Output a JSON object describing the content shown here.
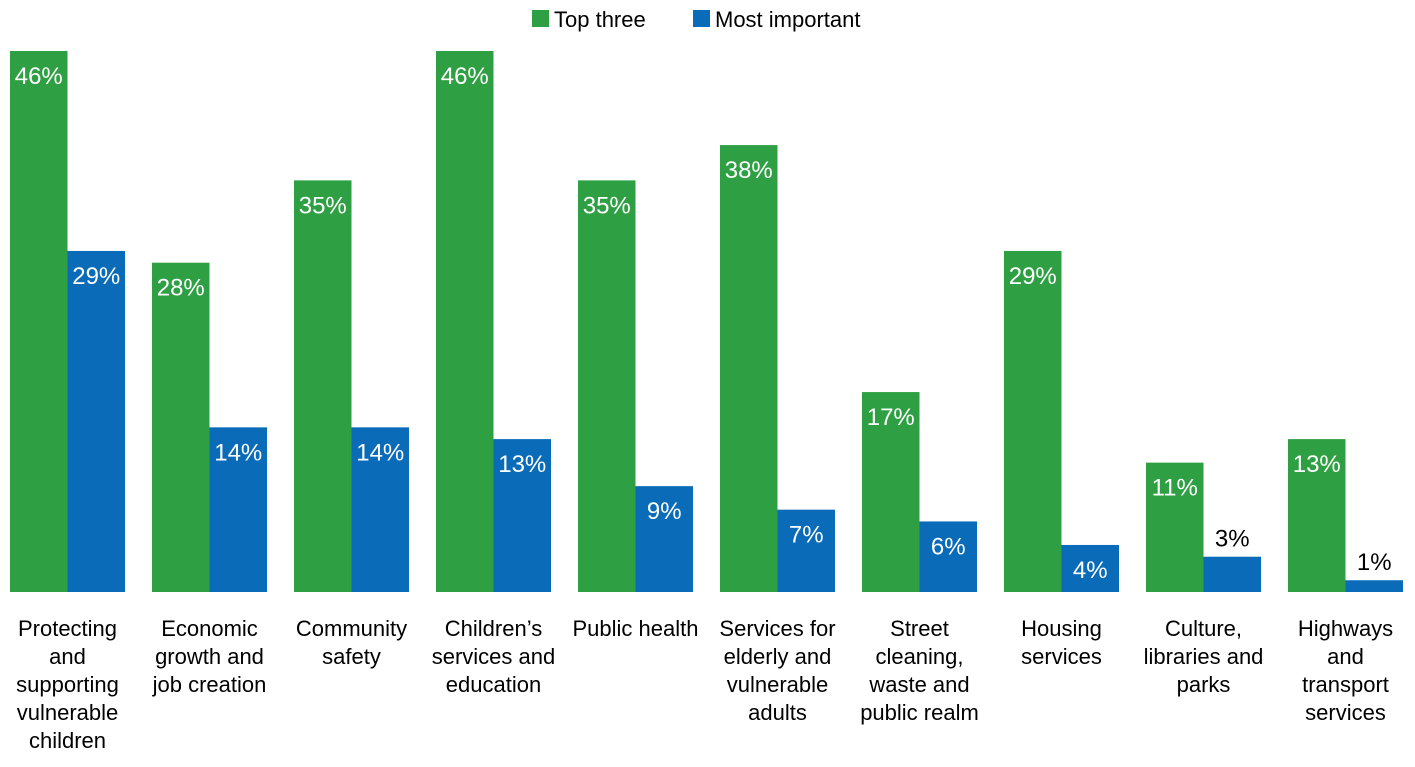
{
  "chart_data": {
    "type": "bar",
    "categories": [
      [
        "Protecting",
        "and",
        "supporting",
        "vulnerable",
        "children"
      ],
      [
        "Economic",
        "growth and",
        "job creation"
      ],
      [
        "Community",
        "safety"
      ],
      [
        "Children’s",
        "services and",
        "education"
      ],
      [
        "Public health"
      ],
      [
        "Services for",
        "elderly and",
        "vulnerable",
        "adults"
      ],
      [
        "Street",
        "cleaning,",
        "waste and",
        "public realm"
      ],
      [
        "Housing",
        "services"
      ],
      [
        "Culture,",
        "libraries and",
        "parks"
      ],
      [
        "Highways",
        "and",
        "transport",
        "services"
      ]
    ],
    "series": [
      {
        "name": "Top three",
        "color": "#2ea043",
        "values": [
          46,
          28,
          35,
          46,
          35,
          38,
          17,
          29,
          11,
          13
        ],
        "labels": [
          "46%",
          "28%",
          "35%",
          "46%",
          "35%",
          "38%",
          "17%",
          "29%",
          "11%",
          "13%"
        ]
      },
      {
        "name": "Most important",
        "color": "#0a6bb8",
        "values": [
          29,
          14,
          14,
          13,
          9,
          7,
          6,
          4,
          3,
          1
        ],
        "labels": [
          "29%",
          "14%",
          "14%",
          "13%",
          "9%",
          "7%",
          "6%",
          "4%",
          "3%",
          "1%"
        ]
      }
    ],
    "ylim": [
      0,
      46
    ],
    "grid": false,
    "legend_position": "top-center"
  }
}
